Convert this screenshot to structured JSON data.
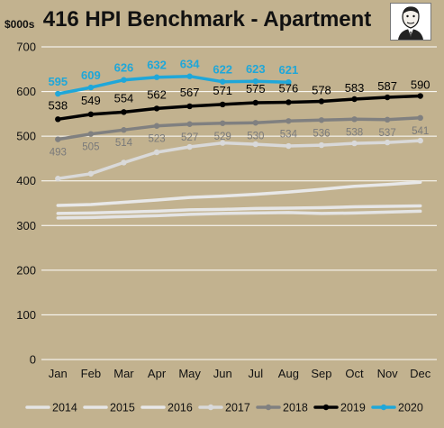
{
  "header": {
    "title": "416 HPI Benchmark - Apartment",
    "y_unit": "$000s"
  },
  "colors": {
    "background": "#c2b28f",
    "gridline": "#ffffff",
    "s2014": "#e4e4e4",
    "s2015": "#e6e6e6",
    "s2016": "#e8e8e8",
    "s2017": "#d9d9d9",
    "s2018": "#808080",
    "s2019": "#000000",
    "s2020": "#1fa7d9",
    "label2018": "#7a7a7a",
    "label2019": "#000000",
    "label2020": "#1fa7d9"
  },
  "portrait_icon": "caricature-portrait-icon",
  "chart_data": {
    "type": "line",
    "title": "416 HPI Benchmark - Apartment",
    "ylabel": "$000s",
    "xlabel": "",
    "ylim": [
      0,
      700
    ],
    "yticks": [
      0,
      100,
      200,
      300,
      400,
      500,
      600,
      700
    ],
    "grid": true,
    "legend_position": "bottom",
    "categories": [
      "Jan",
      "Feb",
      "Mar",
      "Apr",
      "May",
      "Jun",
      "Jul",
      "Aug",
      "Sep",
      "Oct",
      "Nov",
      "Dec"
    ],
    "series": [
      {
        "name": "2014",
        "color_key": "s2014",
        "marker": false,
        "values": [
          317,
          318,
          320,
          322,
          325,
          327,
          328,
          329,
          327,
          328,
          330,
          332
        ]
      },
      {
        "name": "2015",
        "color_key": "s2015",
        "marker": false,
        "values": [
          327,
          328,
          330,
          332,
          335,
          336,
          338,
          339,
          340,
          342,
          343,
          344
        ]
      },
      {
        "name": "2016",
        "color_key": "s2016",
        "marker": false,
        "values": [
          345,
          347,
          352,
          357,
          363,
          366,
          370,
          375,
          381,
          388,
          392,
          397
        ]
      },
      {
        "name": "2017",
        "color_key": "s2017",
        "marker": true,
        "values": [
          405,
          416,
          441,
          464,
          476,
          485,
          482,
          478,
          480,
          484,
          486,
          490
        ]
      },
      {
        "name": "2018",
        "color_key": "s2018",
        "marker": true,
        "label_color_key": "label2018",
        "values": [
          493,
          505,
          514,
          523,
          527,
          529,
          530,
          534,
          536,
          538,
          537,
          541
        ]
      },
      {
        "name": "2019",
        "color_key": "s2019",
        "marker": true,
        "label_color_key": "label2019",
        "values": [
          538,
          549,
          554,
          562,
          567,
          571,
          575,
          576,
          578,
          583,
          587,
          590
        ]
      },
      {
        "name": "2020",
        "color_key": "s2020",
        "marker": true,
        "label_color_key": "label2020",
        "values": [
          595,
          609,
          626,
          632,
          634,
          622,
          623,
          621,
          null,
          null,
          null,
          null
        ]
      }
    ]
  }
}
